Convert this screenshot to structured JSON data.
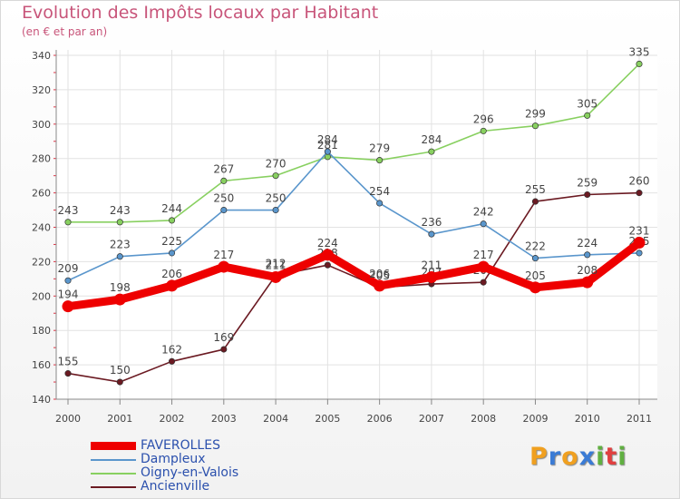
{
  "title": "Evolution des Impôts locaux par Habitant",
  "subtitle": "(en € et par an)",
  "logo": {
    "letters": [
      "P",
      "r",
      "o",
      "x",
      "i",
      "t",
      "i"
    ],
    "colors": [
      "#f0a020",
      "#3a7bd5",
      "#f0a020",
      "#3a7bd5",
      "#60b040",
      "#e04040",
      "#60b040"
    ]
  },
  "chart_data": {
    "type": "line",
    "x": [
      "2000",
      "2001",
      "2002",
      "2003",
      "2004",
      "2005",
      "2006",
      "2007",
      "2008",
      "2009",
      "2010",
      "2011"
    ],
    "ylim": [
      140,
      340
    ],
    "yticks": [
      "140",
      "160",
      "180",
      "200",
      "220",
      "240",
      "260",
      "280",
      "300",
      "320",
      "340"
    ],
    "grid": true,
    "legend_position": "bottom-left",
    "series": [
      {
        "name": "Ancienville",
        "color": "#6b1a22",
        "values": [
          155,
          150,
          162,
          169,
          212,
          218,
          205,
          207,
          208,
          255,
          259,
          260
        ]
      },
      {
        "name": "Oigny-en-Valois",
        "color": "#88d060",
        "values": [
          243,
          243,
          244,
          267,
          270,
          281,
          279,
          284,
          296,
          299,
          305,
          335
        ]
      },
      {
        "name": "Dampleux",
        "color": "#5a96cc",
        "values": [
          209,
          223,
          225,
          250,
          250,
          284,
          254,
          236,
          242,
          222,
          224,
          225
        ]
      },
      {
        "name": "FAVEROLLES",
        "color": "#ee0000",
        "values": [
          194,
          198,
          206,
          217,
          211,
          224,
          206,
          211,
          217,
          205,
          208,
          231
        ]
      }
    ],
    "legend_order": [
      "FAVEROLLES",
      "Dampleux",
      "Oigny-en-Valois",
      "Ancienville"
    ]
  }
}
